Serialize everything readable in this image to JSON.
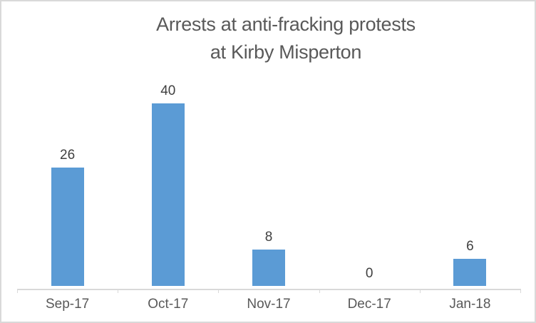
{
  "chart": {
    "title_lines": [
      "Arrests at anti-fracking protests",
      "at Kirby Misperton"
    ]
  },
  "chart_data": {
    "type": "bar",
    "title": "Arrests at anti-fracking protests at Kirby Misperton",
    "categories": [
      "Sep-17",
      "Oct-17",
      "Nov-17",
      "Dec-17",
      "Jan-18"
    ],
    "values": [
      26,
      40,
      8,
      0,
      6
    ],
    "data_labels_visible": true,
    "xlabel": "",
    "ylabel": "",
    "ylim": [
      0,
      40
    ],
    "grid": false,
    "legend": false,
    "y_axis_visible": false
  },
  "colors": {
    "bar": "#5B9BD5",
    "axis_line": "#D9D9D9",
    "frame_border": "#D9D9D9",
    "title_text": "#595959",
    "data_label_text": "#404040",
    "category_label_text": "#595959"
  }
}
